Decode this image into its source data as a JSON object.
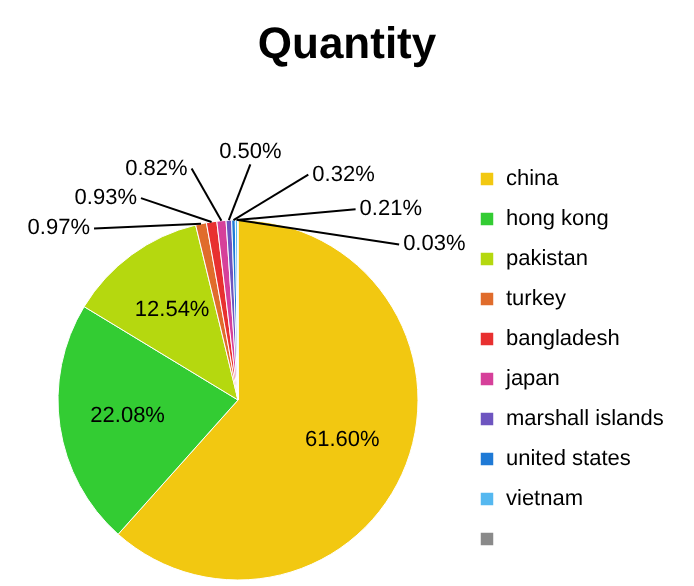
{
  "chart_data": {
    "type": "pie",
    "title": "Quantity",
    "categories": [
      "china",
      "hong kong",
      "pakistan",
      "turkey",
      "bangladesh",
      "japan",
      "marshall islands",
      "united states",
      "vietnam",
      null
    ],
    "values": [
      61.6,
      22.08,
      12.54,
      0.97,
      0.93,
      0.82,
      0.5,
      0.32,
      0.21,
      0.03
    ],
    "colors": [
      "#f2c811",
      "#33cc33",
      "#b5d80f",
      "#e06c2c",
      "#e83030",
      "#d6409a",
      "#6e55c0",
      "#1f7ad6",
      "#55b8f0",
      "#8a8a8a"
    ],
    "value_labels": [
      "61.60%",
      "22.08%",
      "12.54%",
      "0.97%",
      "0.93%",
      "0.82%",
      "0.50%",
      "0.32%",
      "0.21%",
      "0.03%"
    ],
    "legend": "right"
  }
}
